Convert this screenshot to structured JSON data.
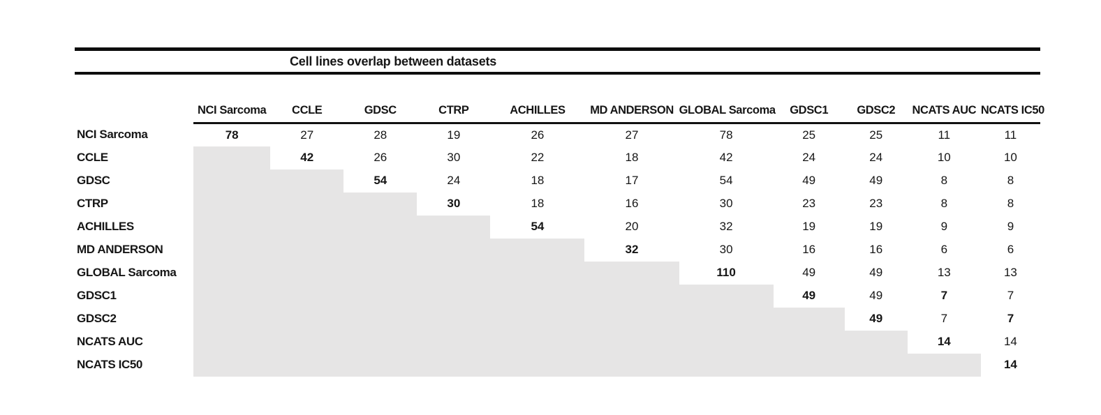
{
  "colors": {
    "background": "#ffffff",
    "rule": "#0d0d0d",
    "text": "#161616",
    "shaded_cell": "#e6e5e5"
  },
  "chart_data": {
    "type": "table",
    "title": "Cell lines overlap between datasets",
    "columns": [
      "NCI Sarcoma",
      "CCLE",
      "GDSC",
      "CTRP",
      "ACHILLES",
      "MD ANDERSON",
      "GLOBAL Sarcoma",
      "GDSC1",
      "GDSC2",
      "NCATS AUC",
      "NCATS IC50"
    ],
    "rows": [
      "NCI Sarcoma",
      "CCLE",
      "GDSC",
      "CTRP",
      "ACHILLES",
      "MD ANDERSON",
      "GLOBAL Sarcoma",
      "GDSC1",
      "GDSC2",
      "NCATS AUC",
      "NCATS IC50"
    ],
    "values": [
      [
        78,
        27,
        28,
        19,
        26,
        27,
        78,
        25,
        25,
        11,
        11
      ],
      [
        null,
        42,
        26,
        30,
        22,
        18,
        42,
        24,
        24,
        10,
        10
      ],
      [
        null,
        null,
        54,
        24,
        18,
        17,
        54,
        49,
        49,
        8,
        8
      ],
      [
        null,
        null,
        null,
        30,
        18,
        16,
        30,
        23,
        23,
        8,
        8
      ],
      [
        null,
        null,
        null,
        null,
        54,
        20,
        32,
        19,
        19,
        9,
        9
      ],
      [
        null,
        null,
        null,
        null,
        null,
        32,
        30,
        16,
        16,
        6,
        6
      ],
      [
        null,
        null,
        null,
        null,
        null,
        null,
        110,
        49,
        49,
        13,
        13
      ],
      [
        null,
        null,
        null,
        null,
        null,
        null,
        null,
        49,
        49,
        7,
        7
      ],
      [
        null,
        null,
        null,
        null,
        null,
        null,
        null,
        null,
        49,
        7,
        7
      ],
      [
        null,
        null,
        null,
        null,
        null,
        null,
        null,
        null,
        null,
        14,
        14
      ],
      [
        null,
        null,
        null,
        null,
        null,
        null,
        null,
        null,
        null,
        null,
        14
      ]
    ],
    "diagonal_bold": true,
    "extra_bold_cells": [
      [
        7,
        9
      ],
      [
        8,
        10
      ]
    ],
    "shaded_region": "lower-left triangle below diagonal",
    "legend_position": "none",
    "grid": false
  }
}
